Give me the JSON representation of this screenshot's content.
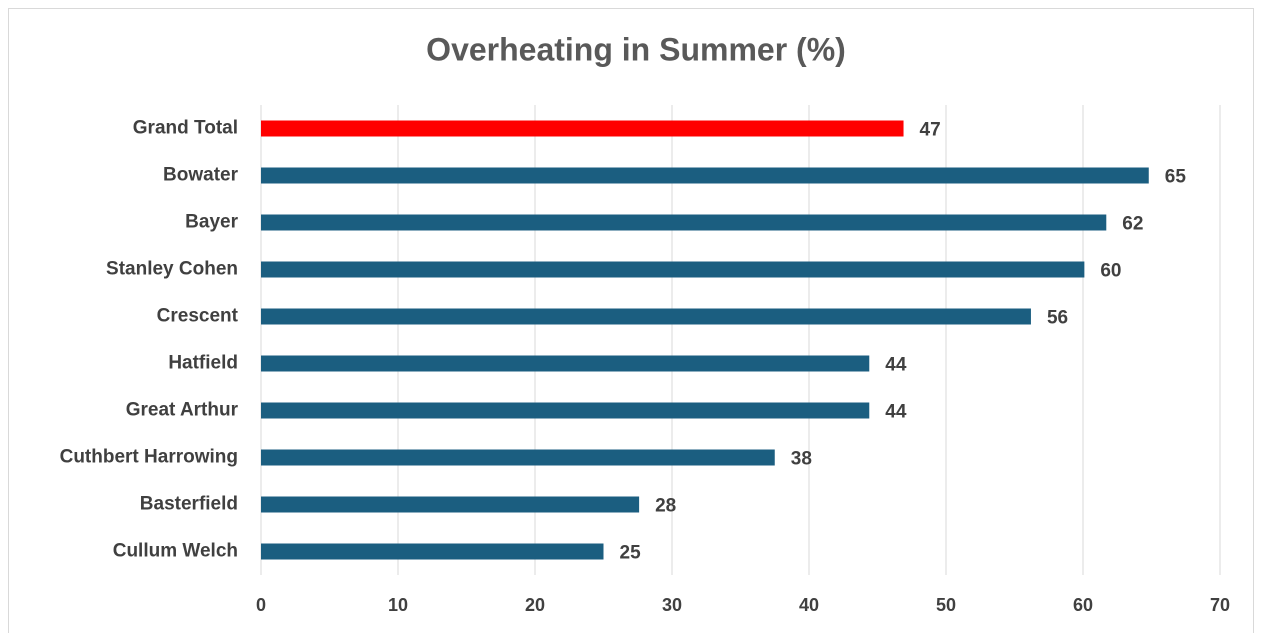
{
  "chart_data": {
    "type": "barh",
    "title": "Overheating in Summer (%)",
    "categories": [
      "Grand Total",
      "Bowater",
      "Bayer",
      "Stanley Cohen",
      "Crescent",
      "Hatfield",
      "Great Arthur",
      "Cuthbert Harrowing",
      "Basterfield",
      "Cullum Welch"
    ],
    "values": [
      46.9,
      64.8,
      61.7,
      60.1,
      56.2,
      44.4,
      44.4,
      37.5,
      27.6,
      25.0
    ],
    "value_labels": [
      "47",
      "65",
      "62",
      "60",
      "56",
      "44",
      "44",
      "38",
      "28",
      "25"
    ],
    "colors": [
      "#ff0000",
      "#1b5e80",
      "#1b5e80",
      "#1b5e80",
      "#1b5e80",
      "#1b5e80",
      "#1b5e80",
      "#1b5e80",
      "#1b5e80",
      "#1b5e80"
    ],
    "xlim": [
      0,
      70
    ],
    "xticks": [
      0,
      10,
      20,
      30,
      40,
      50,
      60,
      70
    ],
    "grid": true
  }
}
